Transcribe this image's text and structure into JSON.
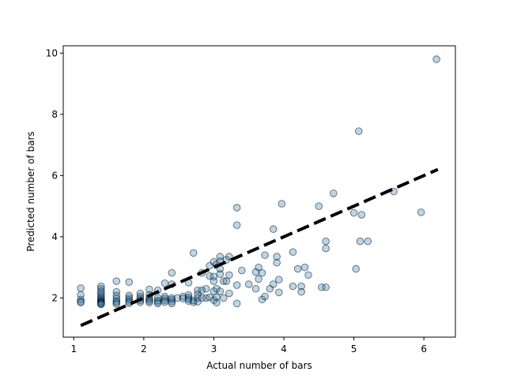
{
  "chart_data": {
    "type": "scatter",
    "xlabel": "Actual number of bars",
    "ylabel": "Predicted number of bars",
    "xlim": [
      0.85,
      6.45
    ],
    "ylim": [
      0.72,
      10.24
    ],
    "xticks": [
      1,
      2,
      3,
      4,
      5,
      6
    ],
    "yticks": [
      2,
      4,
      6,
      8,
      10
    ],
    "grid": false,
    "colors": {
      "point_fill": "#1f77b4",
      "point_edge": "#000000",
      "line": "#000000"
    },
    "fit_line": {
      "x": [
        1.1,
        6.2
      ],
      "y": [
        1.1,
        6.2
      ],
      "style": "dashed"
    },
    "points": [
      [
        1.1,
        2.32
      ],
      [
        1.1,
        2.1
      ],
      [
        1.1,
        1.95
      ],
      [
        1.1,
        1.88
      ],
      [
        1.1,
        1.85
      ],
      [
        1.39,
        2.38
      ],
      [
        1.39,
        2.3
      ],
      [
        1.39,
        2.22
      ],
      [
        1.39,
        2.15
      ],
      [
        1.39,
        2.08
      ],
      [
        1.39,
        2.02
      ],
      [
        1.39,
        1.97
      ],
      [
        1.39,
        1.93
      ],
      [
        1.39,
        1.9
      ],
      [
        1.39,
        1.87
      ],
      [
        1.39,
        1.85
      ],
      [
        1.39,
        1.83
      ],
      [
        1.39,
        1.81
      ],
      [
        1.39,
        1.79
      ],
      [
        1.61,
        2.55
      ],
      [
        1.61,
        2.2
      ],
      [
        1.61,
        2.08
      ],
      [
        1.61,
        1.98
      ],
      [
        1.61,
        1.9
      ],
      [
        1.61,
        1.85
      ],
      [
        1.61,
        1.8
      ],
      [
        1.79,
        2.52
      ],
      [
        1.79,
        2.08
      ],
      [
        1.79,
        2.0
      ],
      [
        1.79,
        1.94
      ],
      [
        1.79,
        1.88
      ],
      [
        1.79,
        1.83
      ],
      [
        1.95,
        2.15
      ],
      [
        1.95,
        2.05
      ],
      [
        1.95,
        1.98
      ],
      [
        1.95,
        1.92
      ],
      [
        1.95,
        1.86
      ],
      [
        2.08,
        2.28
      ],
      [
        2.08,
        2.1
      ],
      [
        2.08,
        2.0
      ],
      [
        2.08,
        1.95
      ],
      [
        2.08,
        1.9
      ],
      [
        2.08,
        1.85
      ],
      [
        2.2,
        2.25
      ],
      [
        2.2,
        2.0
      ],
      [
        2.2,
        1.92
      ],
      [
        2.2,
        1.87
      ],
      [
        2.2,
        1.82
      ],
      [
        2.3,
        2.48
      ],
      [
        2.3,
        2.05
      ],
      [
        2.3,
        1.98
      ],
      [
        2.3,
        1.92
      ],
      [
        2.3,
        1.86
      ],
      [
        2.4,
        2.82
      ],
      [
        2.4,
        2.45
      ],
      [
        2.4,
        2.0
      ],
      [
        2.4,
        1.95
      ],
      [
        2.4,
        1.88
      ],
      [
        2.4,
        1.82
      ],
      [
        2.48,
        2.0
      ],
      [
        2.56,
        2.05
      ],
      [
        2.56,
        1.98
      ],
      [
        2.64,
        2.5
      ],
      [
        2.64,
        2.1
      ],
      [
        2.64,
        2.02
      ],
      [
        2.64,
        1.96
      ],
      [
        2.64,
        1.9
      ],
      [
        2.71,
        3.47
      ],
      [
        2.71,
        1.92
      ],
      [
        2.71,
        1.86
      ],
      [
        2.77,
        2.25
      ],
      [
        2.77,
        2.12
      ],
      [
        2.77,
        2.0
      ],
      [
        2.77,
        1.88
      ],
      [
        2.83,
        2.82
      ],
      [
        2.83,
        2.25
      ],
      [
        2.83,
        2.0
      ],
      [
        2.89,
        2.0
      ],
      [
        2.89,
        2.3
      ],
      [
        2.94,
        3.05
      ],
      [
        2.94,
        2.72
      ],
      [
        2.94,
        2.02
      ],
      [
        3.0,
        3.18
      ],
      [
        3.0,
        2.7
      ],
      [
        3.0,
        2.55
      ],
      [
        3.0,
        2.22
      ],
      [
        3.0,
        1.93
      ],
      [
        3.04,
        3.1
      ],
      [
        3.04,
        2.3
      ],
      [
        3.04,
        2.02
      ],
      [
        3.04,
        1.85
      ],
      [
        3.09,
        3.35
      ],
      [
        3.09,
        3.2
      ],
      [
        3.09,
        2.95
      ],
      [
        3.09,
        2.78
      ],
      [
        3.09,
        2.22
      ],
      [
        3.14,
        2.55
      ],
      [
        3.14,
        2.0
      ],
      [
        3.18,
        3.25
      ],
      [
        3.18,
        2.55
      ],
      [
        3.22,
        3.35
      ],
      [
        3.22,
        2.75
      ],
      [
        3.22,
        2.15
      ],
      [
        3.33,
        4.95
      ],
      [
        3.33,
        4.38
      ],
      [
        3.33,
        2.42
      ],
      [
        3.33,
        1.82
      ],
      [
        3.4,
        2.9
      ],
      [
        3.5,
        2.45
      ],
      [
        3.6,
        2.85
      ],
      [
        3.6,
        2.3
      ],
      [
        3.64,
        3.0
      ],
      [
        3.64,
        2.62
      ],
      [
        3.69,
        2.82
      ],
      [
        3.69,
        1.95
      ],
      [
        3.73,
        3.4
      ],
      [
        3.73,
        2.05
      ],
      [
        3.8,
        2.3
      ],
      [
        3.85,
        4.25
      ],
      [
        3.85,
        2.45
      ],
      [
        3.9,
        3.35
      ],
      [
        3.9,
        3.15
      ],
      [
        3.93,
        2.6
      ],
      [
        3.93,
        2.18
      ],
      [
        3.97,
        5.08
      ],
      [
        4.13,
        3.5
      ],
      [
        4.13,
        2.38
      ],
      [
        4.2,
        2.95
      ],
      [
        4.25,
        2.38
      ],
      [
        4.25,
        2.2
      ],
      [
        4.3,
        3.0
      ],
      [
        4.35,
        2.75
      ],
      [
        4.5,
        5.0
      ],
      [
        4.54,
        2.35
      ],
      [
        4.6,
        3.85
      ],
      [
        4.6,
        3.62
      ],
      [
        4.6,
        2.35
      ],
      [
        4.71,
        5.42
      ],
      [
        5.0,
        4.78
      ],
      [
        5.03,
        2.95
      ],
      [
        5.07,
        7.45
      ],
      [
        5.09,
        3.85
      ],
      [
        5.11,
        4.72
      ],
      [
        5.2,
        3.85
      ],
      [
        5.57,
        5.48
      ],
      [
        5.96,
        4.8
      ],
      [
        6.18,
        9.8
      ]
    ]
  }
}
